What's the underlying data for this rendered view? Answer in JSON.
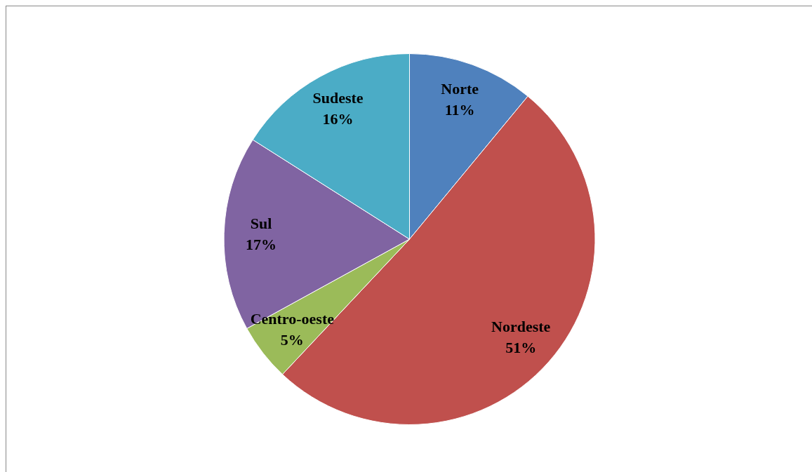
{
  "chart_data": {
    "type": "pie",
    "categories": [
      "Norte",
      "Nordeste",
      "Centro-oeste",
      "Sul",
      "Sudeste"
    ],
    "values": [
      11,
      51,
      5,
      17,
      16
    ],
    "colors": [
      "#4f81bd",
      "#c0504d",
      "#9bbb59",
      "#8064a2",
      "#4bacc6"
    ],
    "value_labels": [
      "11%",
      "51%",
      "5%",
      "17%",
      "16%"
    ],
    "legend": false
  }
}
